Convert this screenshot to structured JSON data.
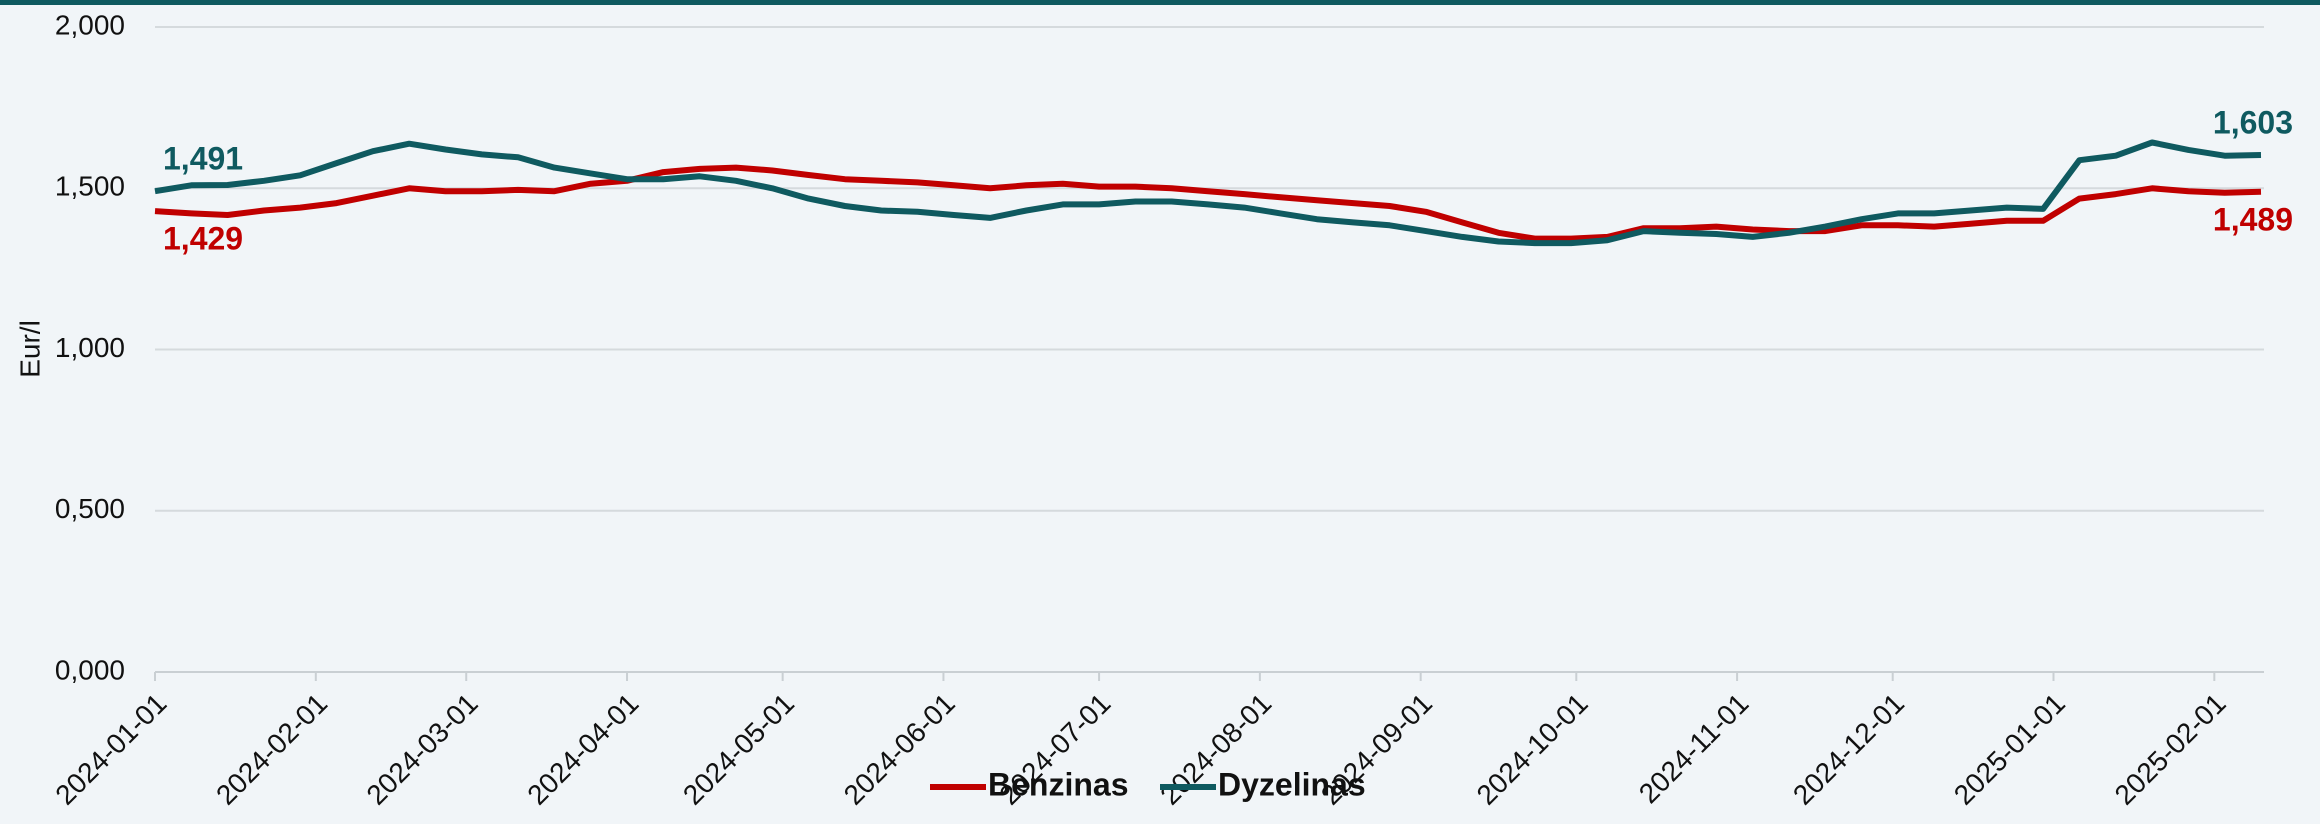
{
  "chart_data": {
    "type": "line",
    "y_label": "Eur/l",
    "x": [
      "2024-01-01",
      "2024-01-08",
      "2024-01-15",
      "2024-01-22",
      "2024-01-29",
      "2024-02-05",
      "2024-02-12",
      "2024-02-19",
      "2024-02-26",
      "2024-03-04",
      "2024-03-11",
      "2024-03-18",
      "2024-03-25",
      "2024-04-01",
      "2024-04-08",
      "2024-04-15",
      "2024-04-22",
      "2024-04-29",
      "2024-05-06",
      "2024-05-13",
      "2024-05-20",
      "2024-05-27",
      "2024-06-03",
      "2024-06-10",
      "2024-06-17",
      "2024-06-24",
      "2024-07-01",
      "2024-07-08",
      "2024-07-15",
      "2024-07-22",
      "2024-07-29",
      "2024-08-05",
      "2024-08-12",
      "2024-08-19",
      "2024-08-26",
      "2024-09-02",
      "2024-09-09",
      "2024-09-16",
      "2024-09-23",
      "2024-09-30",
      "2024-10-07",
      "2024-10-14",
      "2024-10-21",
      "2024-10-28",
      "2024-11-04",
      "2024-11-11",
      "2024-11-18",
      "2024-11-25",
      "2024-12-02",
      "2024-12-09",
      "2024-12-16",
      "2024-12-23",
      "2024-12-30",
      "2025-01-06",
      "2025-01-13",
      "2025-01-20",
      "2025-01-27",
      "2025-02-03",
      "2025-02-10"
    ],
    "series": [
      {
        "name": "Benzinas",
        "color": "#c00000",
        "values": [
          1.429,
          1.422,
          1.417,
          1.431,
          1.44,
          1.454,
          1.477,
          1.5,
          1.491,
          1.491,
          1.495,
          1.491,
          1.514,
          1.523,
          1.55,
          1.56,
          1.564,
          1.555,
          1.541,
          1.528,
          1.523,
          1.518,
          1.509,
          1.5,
          1.509,
          1.514,
          1.505,
          1.505,
          1.5,
          1.491,
          1.482,
          1.472,
          1.463,
          1.454,
          1.445,
          1.427,
          1.394,
          1.362,
          1.344,
          1.344,
          1.349,
          1.376,
          1.376,
          1.381,
          1.372,
          1.367,
          1.367,
          1.385,
          1.385,
          1.381,
          1.39,
          1.399,
          1.399,
          1.468,
          1.482,
          1.5,
          1.491,
          1.486,
          1.489
        ],
        "value_labels": [
          "1,429",
          null,
          null,
          null,
          null,
          null,
          null,
          null,
          null,
          null,
          null,
          null,
          null,
          null,
          null,
          null,
          null,
          null,
          null,
          null,
          null,
          null,
          null,
          null,
          null,
          null,
          null,
          null,
          null,
          null,
          null,
          null,
          null,
          null,
          null,
          null,
          null,
          null,
          null,
          null,
          null,
          null,
          null,
          null,
          null,
          null,
          null,
          null,
          null,
          null,
          null,
          null,
          null,
          null,
          null,
          null,
          null,
          null,
          "1,489"
        ]
      },
      {
        "name": "Dyzelinas",
        "color": "#0f5a60",
        "values": [
          1.491,
          1.509,
          1.51,
          1.523,
          1.54,
          1.578,
          1.615,
          1.638,
          1.62,
          1.605,
          1.596,
          1.564,
          1.546,
          1.528,
          1.528,
          1.537,
          1.523,
          1.5,
          1.468,
          1.445,
          1.431,
          1.427,
          1.417,
          1.408,
          1.431,
          1.45,
          1.45,
          1.459,
          1.459,
          1.45,
          1.44,
          1.422,
          1.404,
          1.394,
          1.385,
          1.367,
          1.349,
          1.335,
          1.33,
          1.33,
          1.339,
          1.367,
          1.362,
          1.358,
          1.349,
          1.362,
          1.381,
          1.404,
          1.422,
          1.422,
          1.431,
          1.44,
          1.436,
          1.587,
          1.601,
          1.642,
          1.619,
          1.601,
          1.603
        ],
        "value_labels": [
          "1,491",
          null,
          null,
          null,
          null,
          null,
          null,
          null,
          null,
          null,
          null,
          null,
          null,
          null,
          null,
          null,
          null,
          null,
          null,
          null,
          null,
          null,
          null,
          null,
          null,
          null,
          null,
          null,
          null,
          null,
          null,
          null,
          null,
          null,
          null,
          null,
          null,
          null,
          null,
          null,
          null,
          null,
          null,
          null,
          null,
          null,
          null,
          null,
          null,
          null,
          null,
          null,
          null,
          null,
          null,
          null,
          null,
          null,
          "1,603"
        ]
      }
    ],
    "xlim": [
      "2024-01-01",
      "2025-02-10"
    ],
    "xticks": [
      "2024-01-01",
      "2024-02-01",
      "2024-03-01",
      "2024-04-01",
      "2024-05-01",
      "2024-06-01",
      "2024-07-01",
      "2024-08-01",
      "2024-09-01",
      "2024-10-01",
      "2024-11-01",
      "2024-12-01",
      "2025-01-01",
      "2025-02-01"
    ],
    "ylim": [
      0,
      2
    ],
    "yticks": [
      {
        "value": 0,
        "label": "0,000"
      },
      {
        "value": 0.5,
        "label": "0,500"
      },
      {
        "value": 1,
        "label": "1,000"
      },
      {
        "value": 1.5,
        "label": "1,500"
      },
      {
        "value": 2,
        "label": "2,000"
      }
    ],
    "grid": true,
    "legend": "bottom"
  }
}
